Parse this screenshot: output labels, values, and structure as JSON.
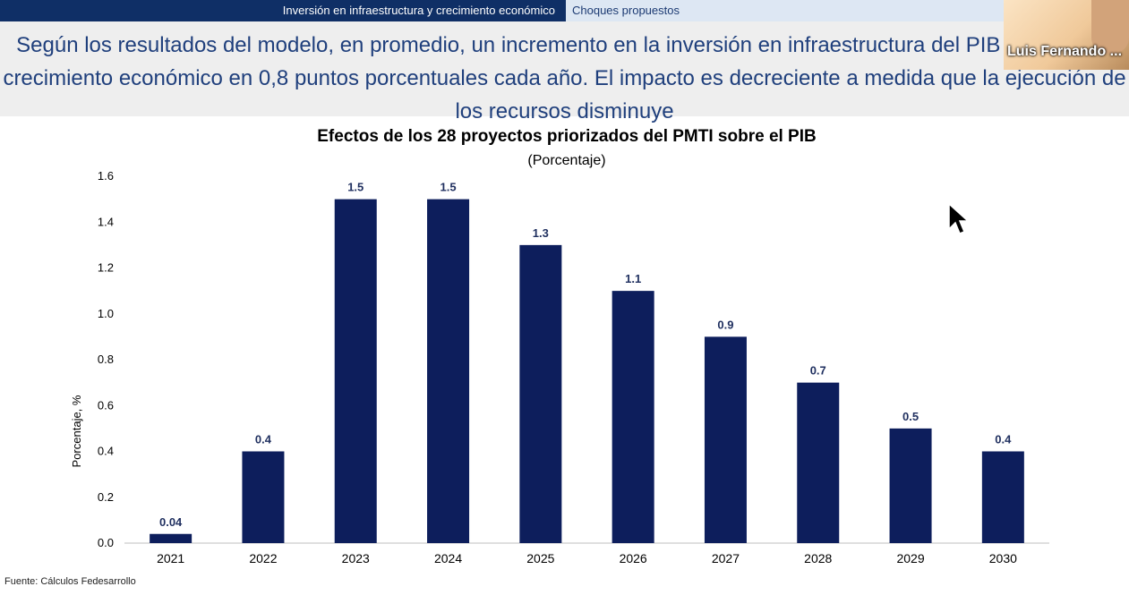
{
  "header": {
    "tab_active": "Inversión en infraestructura y crecimiento económico",
    "tab_inactive": "Choques propuestos"
  },
  "headline": {
    "text": "Según los resultados del modelo, en promedio, un incremento en la inversión en infraestructura del PIB aumenta el crecimiento económico en 0,8 puntos porcentuales cada año. El impacto es decreciente a medida que la ejecución de los recursos disminuye"
  },
  "video": {
    "participant_name": "Luis Fernando ..."
  },
  "footer": {
    "source": "Fuente: Cálculos Fedesarrollo"
  },
  "colors": {
    "bar": "#0d1e5c",
    "tab_active_bg": "#0f2f66",
    "headline_text": "#1f3f7c"
  },
  "chart_data": {
    "type": "bar",
    "title": "Efectos de los 28 proyectos priorizados del PMTI sobre el PIB",
    "subtitle": "(Porcentaje)",
    "xlabel": "",
    "ylabel": "Porcentaje, %",
    "categories": [
      "2021",
      "2022",
      "2023",
      "2024",
      "2025",
      "2026",
      "2027",
      "2028",
      "2029",
      "2030"
    ],
    "values": [
      0.04,
      0.4,
      1.5,
      1.5,
      1.3,
      1.1,
      0.9,
      0.7,
      0.5,
      0.4
    ],
    "value_labels": [
      "0.04",
      "0.4",
      "1.5",
      "1.5",
      "1.3",
      "1.1",
      "0.9",
      "0.7",
      "0.5",
      "0.4"
    ],
    "ylim": [
      0,
      1.6
    ],
    "yticks": [
      "0.0",
      "0.2",
      "0.4",
      "0.6",
      "0.8",
      "1.0",
      "1.2",
      "1.4",
      "1.6"
    ],
    "grid": false,
    "legend": "none"
  }
}
